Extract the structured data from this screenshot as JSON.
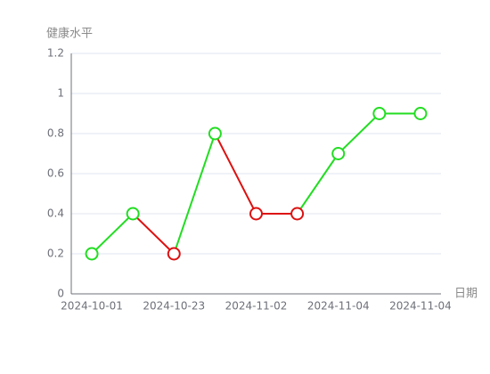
{
  "chart_data": {
    "type": "line",
    "y_axis_label": "健康水平",
    "x_axis_label": "日期",
    "categories": [
      "2024-10-01",
      null,
      "2024-10-23",
      null,
      "2024-11-02",
      null,
      "2024-11-04",
      null,
      "2024-11-04"
    ],
    "series": [
      {
        "values": [
          0.2,
          0.4,
          0.2,
          0.8,
          0.4,
          0.4,
          0.7,
          0.9,
          0.9
        ],
        "colors": [
          "#22dd22",
          "#22dd22",
          "#dd1111",
          "#22dd22",
          "#dd1111",
          "#dd1111",
          "#22dd22",
          "#22dd22",
          "#22dd22"
        ]
      }
    ],
    "ylim": [
      0,
      1.2
    ],
    "yticks": [
      0,
      0.2,
      0.4,
      0.6,
      0.8,
      1,
      1.2
    ],
    "grid": true
  }
}
